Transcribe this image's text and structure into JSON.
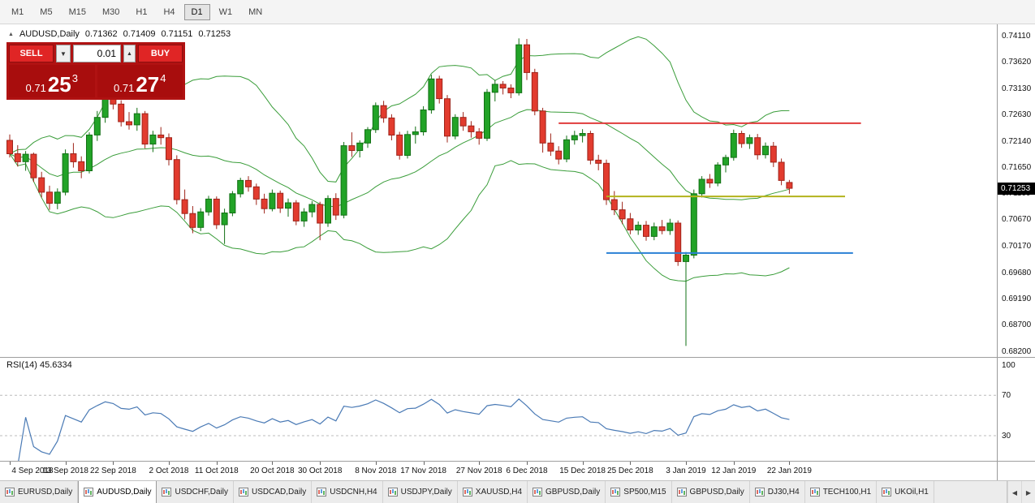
{
  "toolbar": {
    "timeframes": [
      "M1",
      "M5",
      "M15",
      "M30",
      "H1",
      "H4",
      "D1",
      "W1",
      "MN"
    ],
    "active": "D1"
  },
  "chart_header": {
    "symbol": "AUDUSD,Daily",
    "open": "0.71362",
    "high": "0.71409",
    "low": "0.71151",
    "close": "0.71253"
  },
  "trade_panel": {
    "sell_label": "SELL",
    "buy_label": "BUY",
    "lot": "0.01",
    "sell_price": {
      "prefix": "0.71",
      "pips": "25",
      "frac": "3"
    },
    "buy_price": {
      "prefix": "0.71",
      "pips": "27",
      "frac": "4"
    }
  },
  "price_axis": {
    "labels": [
      "0.74110",
      "0.73620",
      "0.73130",
      "0.72630",
      "0.72140",
      "0.71650",
      "0.71160",
      "0.70670",
      "0.70170",
      "0.69680",
      "0.69190",
      "0.68700",
      "0.68200"
    ],
    "current": "0.71253",
    "current_value": 0.71253
  },
  "rsi_panel": {
    "label": "RSI(14) 45.6334",
    "levels": [
      {
        "text": "100",
        "value": 100
      },
      {
        "text": "70",
        "value": 70
      },
      {
        "text": "30",
        "value": 30
      }
    ]
  },
  "tabs": {
    "items": [
      "EURUSD,Daily",
      "AUDUSD,Daily",
      "USDCHF,Daily",
      "USDCAD,Daily",
      "USDCNH,H4",
      "USDJPY,Daily",
      "XAUUSD,H4",
      "GBPUSD,Daily",
      "SP500,M15",
      "GBPUSD,Daily",
      "DJ30,H4",
      "TECH100,H1",
      "UKOil,H1"
    ],
    "active_index": 1,
    "nav_left": "◀",
    "nav_right": "▶"
  },
  "colors": {
    "bull_fill": "#22a327",
    "bull_stroke": "#127014",
    "bear_fill": "#e23b2e",
    "bear_stroke": "#9e241a",
    "bollinger": "#3a9d3a",
    "rsi": "#4a7ab5",
    "rsi_level": "#bcbcbc",
    "badge_bg": "#000000"
  },
  "chart_data": {
    "type": "candlestick",
    "title": "AUDUSD,Daily",
    "x_tick_labels": [
      "4 Sep 2018",
      "13 Sep 2018",
      "22 Sep 2018",
      "2 Oct 2018",
      "11 Oct 2018",
      "20 Oct 2018",
      "30 Oct 2018",
      "8 Nov 2018",
      "17 Nov 2018",
      "27 Nov 2018",
      "6 Dec 2018",
      "15 Dec 2018",
      "25 Dec 2018",
      "3 Jan 2019",
      "12 Jan 2019",
      "22 Jan 2019"
    ],
    "x_tick_indices": [
      0,
      7,
      13,
      20,
      26,
      33,
      39,
      46,
      52,
      59,
      65,
      72,
      78,
      85,
      91,
      98
    ],
    "y_min": 0.68093,
    "y_max": 0.74323,
    "y_tick_values": [
      0.7411,
      0.7362,
      0.7313,
      0.7263,
      0.7214,
      0.7165,
      0.7116,
      0.7067,
      0.7017,
      0.6968,
      0.6919,
      0.687,
      0.682
    ],
    "grid": false,
    "candles": [
      [
        0.7215,
        0.7226,
        0.7183,
        0.719
      ],
      [
        0.719,
        0.7206,
        0.7166,
        0.7175
      ],
      [
        0.7175,
        0.7195,
        0.7158,
        0.7189
      ],
      [
        0.7189,
        0.7192,
        0.7137,
        0.7145
      ],
      [
        0.7145,
        0.7156,
        0.7108,
        0.7118
      ],
      [
        0.7118,
        0.713,
        0.7085,
        0.7097
      ],
      [
        0.7097,
        0.7125,
        0.7086,
        0.7118
      ],
      [
        0.7118,
        0.7198,
        0.7112,
        0.719
      ],
      [
        0.719,
        0.721,
        0.7164,
        0.7175
      ],
      [
        0.7175,
        0.7185,
        0.7144,
        0.7158
      ],
      [
        0.7158,
        0.723,
        0.7153,
        0.7225
      ],
      [
        0.7225,
        0.727,
        0.7214,
        0.7258
      ],
      [
        0.7258,
        0.7304,
        0.7248,
        0.7293
      ],
      [
        0.7293,
        0.731,
        0.7273,
        0.7283
      ],
      [
        0.7283,
        0.729,
        0.7241,
        0.725
      ],
      [
        0.725,
        0.7268,
        0.7235,
        0.7244
      ],
      [
        0.7244,
        0.7276,
        0.7233,
        0.7265
      ],
      [
        0.7265,
        0.727,
        0.72,
        0.7208
      ],
      [
        0.7208,
        0.7233,
        0.7193,
        0.7225
      ],
      [
        0.7225,
        0.724,
        0.7207,
        0.722
      ],
      [
        0.722,
        0.7228,
        0.7168,
        0.7179
      ],
      [
        0.7179,
        0.7187,
        0.7095,
        0.7104
      ],
      [
        0.7104,
        0.7123,
        0.7067,
        0.7078
      ],
      [
        0.7078,
        0.7092,
        0.7041,
        0.7052
      ],
      [
        0.7052,
        0.7088,
        0.7045,
        0.7081
      ],
      [
        0.7081,
        0.7111,
        0.7074,
        0.7105
      ],
      [
        0.7105,
        0.711,
        0.7049,
        0.7057
      ],
      [
        0.7057,
        0.7087,
        0.7021,
        0.7079
      ],
      [
        0.7079,
        0.712,
        0.7073,
        0.7115
      ],
      [
        0.7115,
        0.7145,
        0.7108,
        0.714
      ],
      [
        0.714,
        0.7148,
        0.7119,
        0.7128
      ],
      [
        0.7128,
        0.7134,
        0.7094,
        0.7105
      ],
      [
        0.7105,
        0.7115,
        0.7078,
        0.7087
      ],
      [
        0.7087,
        0.7123,
        0.7082,
        0.7116
      ],
      [
        0.7116,
        0.7121,
        0.7079,
        0.7088
      ],
      [
        0.7088,
        0.7106,
        0.7072,
        0.7098
      ],
      [
        0.7098,
        0.7103,
        0.7056,
        0.7064
      ],
      [
        0.7064,
        0.7088,
        0.7053,
        0.7081
      ],
      [
        0.7081,
        0.7101,
        0.7071,
        0.7095
      ],
      [
        0.7095,
        0.71,
        0.7028,
        0.706
      ],
      [
        0.706,
        0.7112,
        0.7053,
        0.7106
      ],
      [
        0.7106,
        0.7116,
        0.7066,
        0.7075
      ],
      [
        0.7075,
        0.7212,
        0.7069,
        0.7205
      ],
      [
        0.7205,
        0.723,
        0.7184,
        0.7196
      ],
      [
        0.7196,
        0.7215,
        0.7183,
        0.721
      ],
      [
        0.721,
        0.724,
        0.7201,
        0.7235
      ],
      [
        0.7235,
        0.7286,
        0.7229,
        0.728
      ],
      [
        0.728,
        0.7289,
        0.7248,
        0.7257
      ],
      [
        0.7257,
        0.7264,
        0.7215,
        0.7225
      ],
      [
        0.7225,
        0.7231,
        0.7179,
        0.7187
      ],
      [
        0.7187,
        0.7233,
        0.7181,
        0.7226
      ],
      [
        0.7226,
        0.7241,
        0.7209,
        0.7231
      ],
      [
        0.7231,
        0.7279,
        0.7224,
        0.7272
      ],
      [
        0.7272,
        0.7338,
        0.7265,
        0.733
      ],
      [
        0.733,
        0.7336,
        0.7284,
        0.7293
      ],
      [
        0.7293,
        0.73,
        0.7211,
        0.7223
      ],
      [
        0.7223,
        0.7264,
        0.7217,
        0.7258
      ],
      [
        0.7258,
        0.7268,
        0.7233,
        0.7242
      ],
      [
        0.7242,
        0.7251,
        0.722,
        0.7231
      ],
      [
        0.7231,
        0.7238,
        0.7207,
        0.7219
      ],
      [
        0.7219,
        0.7311,
        0.7214,
        0.7305
      ],
      [
        0.7305,
        0.7328,
        0.7288,
        0.732
      ],
      [
        0.732,
        0.7326,
        0.7301,
        0.7313
      ],
      [
        0.7313,
        0.732,
        0.7294,
        0.7304
      ],
      [
        0.7304,
        0.7406,
        0.7299,
        0.7394
      ],
      [
        0.7394,
        0.7405,
        0.7328,
        0.7342
      ],
      [
        0.7342,
        0.7349,
        0.7262,
        0.727
      ],
      [
        0.727,
        0.7276,
        0.7192,
        0.721
      ],
      [
        0.721,
        0.7228,
        0.7186,
        0.7195
      ],
      [
        0.7195,
        0.7204,
        0.717,
        0.718
      ],
      [
        0.718,
        0.7224,
        0.7174,
        0.7216
      ],
      [
        0.7216,
        0.7233,
        0.7207,
        0.7224
      ],
      [
        0.7224,
        0.7236,
        0.7211,
        0.7228
      ],
      [
        0.7228,
        0.7233,
        0.717,
        0.7178
      ],
      [
        0.7178,
        0.7188,
        0.7159,
        0.7172
      ],
      [
        0.7172,
        0.7179,
        0.7094,
        0.7104
      ],
      [
        0.7104,
        0.712,
        0.7075,
        0.7085
      ],
      [
        0.7085,
        0.71,
        0.7058,
        0.7068
      ],
      [
        0.7068,
        0.7079,
        0.7039,
        0.7047
      ],
      [
        0.7047,
        0.7063,
        0.7038,
        0.7056
      ],
      [
        0.7056,
        0.7064,
        0.7027,
        0.7035
      ],
      [
        0.7035,
        0.7061,
        0.7028,
        0.7053
      ],
      [
        0.7053,
        0.7066,
        0.7039,
        0.7046
      ],
      [
        0.7046,
        0.7068,
        0.7038,
        0.706
      ],
      [
        0.706,
        0.7065,
        0.698,
        0.6988
      ],
      [
        0.6988,
        0.7006,
        0.683,
        0.7
      ],
      [
        0.7,
        0.7123,
        0.6994,
        0.7115
      ],
      [
        0.7115,
        0.7148,
        0.7108,
        0.7142
      ],
      [
        0.7142,
        0.7152,
        0.7126,
        0.7135
      ],
      [
        0.7135,
        0.7174,
        0.7129,
        0.7169
      ],
      [
        0.7169,
        0.7188,
        0.7155,
        0.7183
      ],
      [
        0.7183,
        0.7235,
        0.7177,
        0.7228
      ],
      [
        0.7228,
        0.7233,
        0.7201,
        0.7209
      ],
      [
        0.7209,
        0.7226,
        0.7199,
        0.722
      ],
      [
        0.722,
        0.7227,
        0.7179,
        0.7188
      ],
      [
        0.7188,
        0.7211,
        0.7181,
        0.7204
      ],
      [
        0.7204,
        0.7212,
        0.7165,
        0.7174
      ],
      [
        0.7174,
        0.7181,
        0.7131,
        0.714
      ],
      [
        0.71362,
        0.71409,
        0.71151,
        0.71253
      ]
    ],
    "indicators": {
      "bollinger_period": 20,
      "bollinger_dev": 2,
      "rsi_period": 14,
      "rsi_current": 45.6334,
      "rsi_levels": [
        70,
        30
      ],
      "rsi_range": [
        0,
        100
      ]
    },
    "hlines": [
      {
        "price": 0.7247,
        "from_index": 69,
        "to_index": 107,
        "color": "#e03c3c"
      },
      {
        "price": 0.711,
        "from_index": 75,
        "to_index": 105,
        "color": "#b3b31c"
      },
      {
        "price": 0.7004,
        "from_index": 75,
        "to_index": 106,
        "color": "#2a80d5"
      }
    ]
  }
}
